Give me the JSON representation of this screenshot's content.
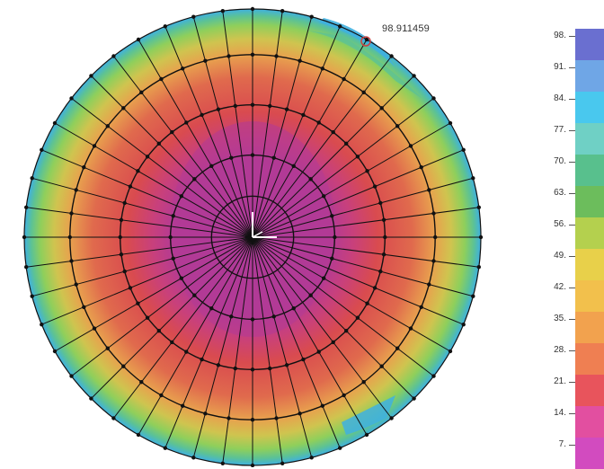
{
  "probe": {
    "value_label": "98.911459"
  },
  "legend": {
    "ticks": [
      "98.",
      "91.",
      "84.",
      "77.",
      "70.",
      "63.",
      "56.",
      "49.",
      "42.",
      "35.",
      "28.",
      "21.",
      "14.",
      "7."
    ],
    "colors": [
      "#6a6fd0",
      "#6fa6e6",
      "#49c8ee",
      "#6fd0c5",
      "#58c08d",
      "#6cbd5c",
      "#b4d04e",
      "#e8d04a",
      "#f2c04c",
      "#f2a24e",
      "#ef7f52",
      "#e8545c",
      "#e24fa0",
      "#d24bbf"
    ]
  },
  "contour": {
    "rim_color": "#3f9fd8",
    "band_colors": [
      "#3fb0e0",
      "#5cc295",
      "#8fcf5b",
      "#cfc44f",
      "#e8a14e",
      "#e4704f",
      "#d94b4f",
      "#c23a8c",
      "#a93a9e"
    ]
  },
  "mesh": {
    "spokes": 48,
    "ring_fractions": [
      0.18,
      0.36,
      0.58,
      0.8,
      1.0
    ]
  }
}
